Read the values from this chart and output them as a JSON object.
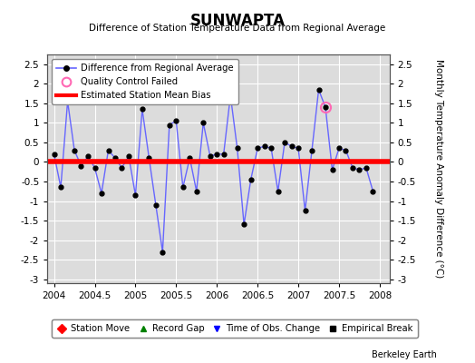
{
  "title": "SUNWAPTA",
  "subtitle": "Difference of Station Temperature Data from Regional Average",
  "ylabel_right": "Monthly Temperature Anomaly Difference (°C)",
  "bias_value": 0.0,
  "xlim": [
    2003.92,
    2008.12
  ],
  "ylim": [
    -3.1,
    2.75
  ],
  "yticks": [
    -3,
    -2.5,
    -2,
    -1.5,
    -1,
    -0.5,
    0,
    0.5,
    1,
    1.5,
    2,
    2.5
  ],
  "ytick_labels": [
    "-3",
    "-2.5",
    "-2",
    "-1.5",
    "-1",
    "-0.5",
    "0",
    "0.5",
    "1",
    "1.5",
    "2",
    "2.5"
  ],
  "xticks": [
    2004,
    2004.5,
    2005,
    2005.5,
    2006,
    2006.5,
    2007,
    2007.5,
    2008
  ],
  "xtick_labels": [
    "2004",
    "2004.5",
    "2005",
    "2005.5",
    "2006",
    "2006.5",
    "2007",
    "2007.5",
    "2008"
  ],
  "background_color": "#dcdcdc",
  "grid_color": "#ffffff",
  "fig_background": "#ffffff",
  "line_color": "#6666ff",
  "line_color_dark": "#0000cc",
  "bias_color": "#ff0000",
  "marker_color": "#000000",
  "qc_failed_color": "#ff69b4",
  "data_x": [
    2004.0,
    2004.083,
    2004.167,
    2004.25,
    2004.333,
    2004.417,
    2004.5,
    2004.583,
    2004.667,
    2004.75,
    2004.833,
    2004.917,
    2005.0,
    2005.083,
    2005.167,
    2005.25,
    2005.333,
    2005.417,
    2005.5,
    2005.583,
    2005.667,
    2005.75,
    2005.833,
    2005.917,
    2006.0,
    2006.083,
    2006.167,
    2006.25,
    2006.333,
    2006.417,
    2006.5,
    2006.583,
    2006.667,
    2006.75,
    2006.833,
    2006.917,
    2007.0,
    2007.083,
    2007.167,
    2007.25,
    2007.333,
    2007.417,
    2007.5,
    2007.583,
    2007.667,
    2007.75,
    2007.833,
    2007.917
  ],
  "data_y": [
    0.2,
    -0.65,
    1.55,
    0.3,
    -0.1,
    0.15,
    -0.15,
    -0.8,
    0.3,
    0.1,
    -0.15,
    0.15,
    -0.85,
    1.35,
    0.1,
    -1.1,
    -2.3,
    0.95,
    1.05,
    -0.65,
    0.1,
    -0.75,
    1.0,
    0.15,
    0.2,
    0.2,
    1.7,
    0.35,
    -1.6,
    -0.45,
    0.35,
    0.4,
    0.35,
    -0.75,
    0.5,
    0.4,
    0.35,
    -1.25,
    0.3,
    1.85,
    1.4,
    -0.2,
    0.35,
    0.3,
    -0.15,
    -0.2,
    -0.15,
    -0.75
  ],
  "qc_failed_x": [
    2007.333
  ],
  "qc_failed_y": [
    1.4
  ],
  "footer": "Berkeley Earth"
}
